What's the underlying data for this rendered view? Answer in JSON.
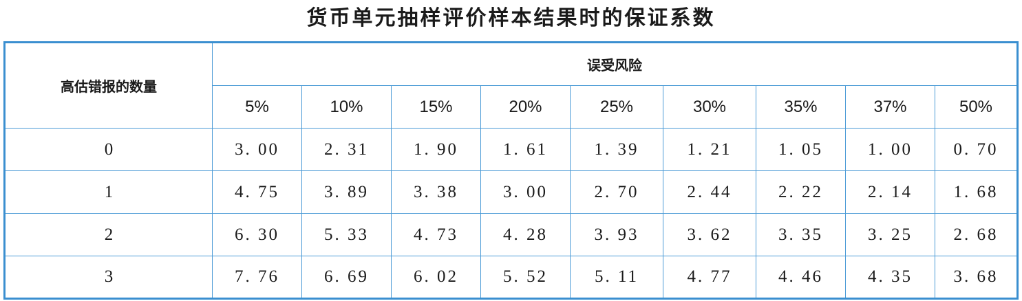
{
  "title": "货币单元抽样评价样本结果时的保证系数",
  "table": {
    "row_header": "高估错报的数量",
    "group_header": "误受风险",
    "columns": [
      "5%",
      "10%",
      "15%",
      "20%",
      "25%",
      "30%",
      "35%",
      "37%",
      "50%"
    ],
    "rows": [
      {
        "count": "0",
        "values": [
          "3. 00",
          "2. 31",
          "1. 90",
          "1. 61",
          "1. 39",
          "1. 21",
          "1. 05",
          "1. 00",
          "0. 70"
        ]
      },
      {
        "count": "1",
        "values": [
          "4. 75",
          "3. 89",
          "3. 38",
          "3. 00",
          "2. 70",
          "2. 44",
          "2. 22",
          "2. 14",
          "1. 68"
        ]
      },
      {
        "count": "2",
        "values": [
          "6. 30",
          "5. 33",
          "4. 73",
          "4. 28",
          "3. 93",
          "3. 62",
          "3. 35",
          "3. 25",
          "2. 68"
        ]
      },
      {
        "count": "3",
        "values": [
          "7. 76",
          "6. 69",
          "6. 02",
          "5. 52",
          "5. 11",
          "4. 77",
          "4. 46",
          "4. 35",
          "3. 68"
        ]
      }
    ]
  }
}
